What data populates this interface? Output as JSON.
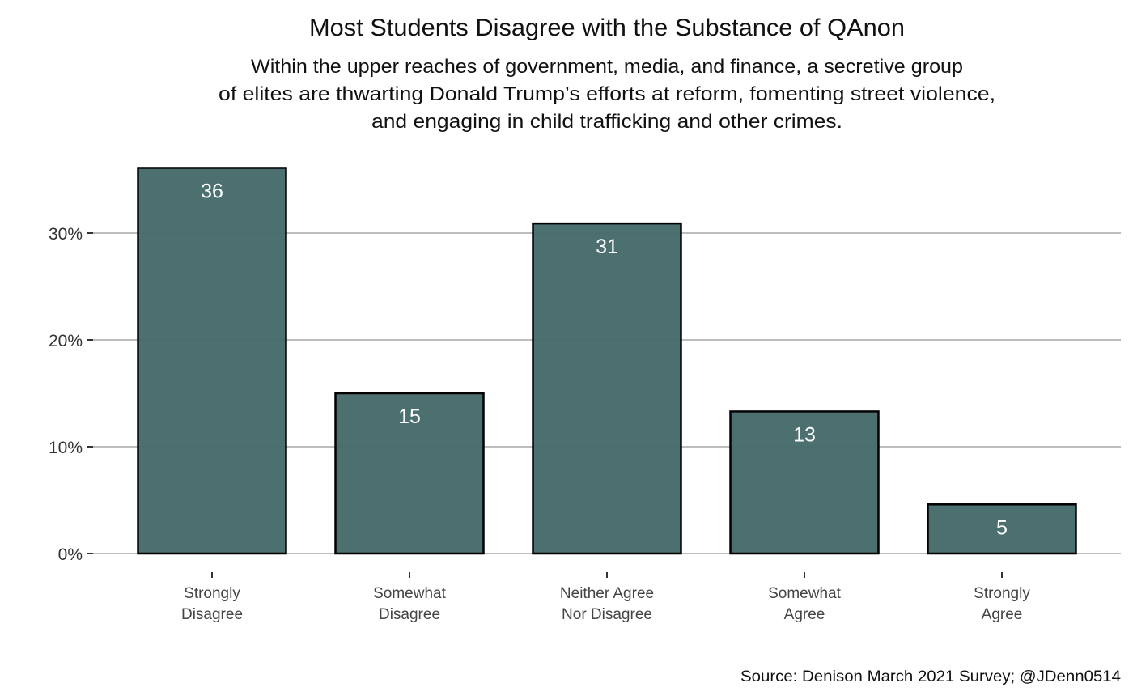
{
  "chart_data": {
    "type": "bar",
    "title": "Most Students Disagree with the Substance of QAnon",
    "subtitle": [
      "Within the upper reaches of government, media, and finance, a secretive group",
      "of elites are thwarting Donald Trump’s efforts at reform, fomenting street violence,",
      "and engaging in child trafficking and other crimes."
    ],
    "categories": [
      [
        "Strongly",
        "Disagree"
      ],
      [
        "Somewhat",
        "Disagree"
      ],
      [
        "Neither Agree",
        "Nor Disagree"
      ],
      [
        "Somewhat",
        "Agree"
      ],
      [
        "Strongly",
        "Agree"
      ]
    ],
    "values": [
      36.1,
      15.0,
      30.9,
      13.3,
      4.6
    ],
    "data_labels": [
      "36",
      "15",
      "31",
      "13",
      "5"
    ],
    "xlabel": "",
    "ylabel": "",
    "ylim": [
      0,
      37
    ],
    "yticks": [
      0,
      10,
      20,
      30
    ],
    "ytick_labels": [
      "0%",
      "10%",
      "20%",
      "30%"
    ],
    "grid": "horizontal major",
    "bar_color": "#466a6a",
    "bar_outline": "#000000",
    "caption": "Source: Denison March 2021 Survey; @JDenn0514"
  }
}
